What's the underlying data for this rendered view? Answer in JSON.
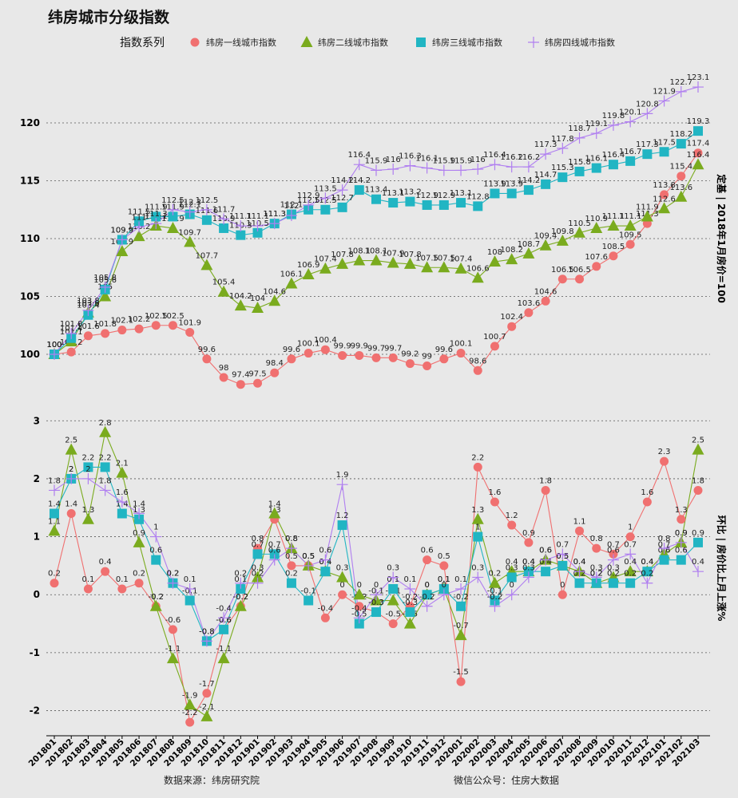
{
  "title": "纬房城市分级指数",
  "legend_title": "指数系列",
  "footer": {
    "source": "数据来源：纬房研究院",
    "wechat": "微信公众号：住房大数据"
  },
  "chart_data": [
    {
      "type": "line",
      "ylabel": "定基 | 2018年1月房价=100",
      "ylim": [
        96,
        124
      ],
      "yticks": [
        100,
        105,
        110,
        115,
        120
      ],
      "grid": "horizontal dotted",
      "legend_position": "top",
      "x": [
        "201801",
        "201802",
        "201803",
        "201804",
        "201805",
        "201806",
        "201807",
        "201808",
        "201809",
        "201810",
        "201811",
        "201812",
        "201901",
        "201902",
        "201903",
        "201904",
        "201905",
        "201906",
        "201907",
        "201908",
        "201909",
        "201910",
        "201911",
        "201912",
        "202001",
        "202002",
        "202003",
        "202004",
        "202005",
        "202006",
        "202007",
        "202008",
        "202009",
        "202010",
        "202011",
        "202012",
        "202101",
        "202102",
        "202103"
      ],
      "series": [
        {
          "name": "纬房一线城市指数",
          "color": "#f07070",
          "marker": "circle",
          "values": [
            100,
            100.2,
            101.6,
            101.8,
            102.1,
            102.2,
            102.5,
            102.5,
            101.9,
            99.6,
            98,
            97.4,
            97.5,
            98.4,
            99.6,
            100.1,
            100.4,
            99.9,
            99.9,
            99.7,
            99.7,
            99.2,
            99,
            99.6,
            100.1,
            98.6,
            100.7,
            102.4,
            103.6,
            104.6,
            106.5,
            106.5,
            107.6,
            108.5,
            109.5,
            111.3,
            113.8,
            115.4,
            117.4
          ]
        },
        {
          "name": "纬房二线城市指数",
          "color": "#7aab1e",
          "marker": "triangle",
          "values": [
            100,
            101.1,
            103.6,
            105,
            108.9,
            110.2,
            111.1,
            110.9,
            109.7,
            107.7,
            105.4,
            104.2,
            104,
            104.6,
            106.1,
            106.9,
            107.4,
            107.8,
            108.1,
            108.1,
            107.9,
            107.8,
            107.5,
            107.5,
            107.4,
            106.6,
            108,
            108.2,
            108.7,
            109.4,
            109.8,
            110.5,
            110.9,
            111.1,
            111.1,
            111.9,
            112.6,
            113.6,
            116.4
          ]
        },
        {
          "name": "纬房三线城市指数",
          "color": "#21b5c3",
          "marker": "square",
          "values": [
            100,
            101.4,
            103.4,
            105.6,
            109.9,
            111.5,
            111.9,
            111.9,
            112.1,
            111.6,
            110.9,
            110.3,
            110.5,
            111.3,
            112.1,
            112.5,
            112.5,
            112.7,
            114.2,
            113.4,
            113.1,
            113.2,
            112.9,
            112.9,
            113.1,
            112.8,
            113.9,
            113.9,
            114.2,
            114.7,
            115.3,
            115.8,
            116.1,
            116.4,
            116.7,
            117.3,
            117.5,
            118.2,
            119.3
          ]
        },
        {
          "name": "纬房四线城市指数",
          "color": "#b07ff0",
          "marker": "plus",
          "values": [
            100,
            101.8,
            103.8,
            105.8,
            109.9,
            111,
            111.3,
            112.5,
            112.3,
            112.5,
            111.7,
            111.1,
            111.1,
            111.3,
            112,
            112.9,
            113.5,
            114.2,
            116.4,
            115.9,
            116,
            116.3,
            116.1,
            115.9,
            115.9,
            116,
            116.4,
            116.2,
            116.2,
            117.3,
            117.8,
            118.7,
            119.1,
            119.8,
            120.1,
            120.8,
            121.9,
            122.7,
            123.1
          ]
        }
      ]
    },
    {
      "type": "line",
      "ylabel": "环比 | 房价比上月上涨%",
      "ylim": [
        -2.35,
        3.1
      ],
      "yticks": [
        -2,
        -1,
        0,
        1,
        2,
        3
      ],
      "grid": "horizontal dotted",
      "x": [
        "201801",
        "201802",
        "201803",
        "201804",
        "201805",
        "201806",
        "201807",
        "201808",
        "201809",
        "201810",
        "201811",
        "201812",
        "201901",
        "201902",
        "201903",
        "201904",
        "201905",
        "201906",
        "201907",
        "201908",
        "201909",
        "201910",
        "201911",
        "201912",
        "202001",
        "202002",
        "202003",
        "202004",
        "202005",
        "202006",
        "202007",
        "202008",
        "202009",
        "202010",
        "202011",
        "202012",
        "202101",
        "202102",
        "202103"
      ],
      "series": [
        {
          "name": "纬房一线城市指数",
          "color": "#f07070",
          "marker": "circle",
          "values": [
            0.2,
            1.4,
            0.1,
            0.4,
            0.1,
            0.2,
            -0.2,
            -0.6,
            -2.2,
            -1.7,
            -0.6,
            -0.2,
            0.8,
            1.3,
            0.5,
            0.5,
            -0.4,
            0,
            -0.2,
            -0.3,
            -0.5,
            -0.2,
            0.6,
            0.5,
            -1.5,
            2.2,
            1.6,
            1.2,
            0.9,
            1.8,
            0,
            1.1,
            0.8,
            0.7,
            1,
            1.6,
            2.3,
            1.3,
            1.8
          ]
        },
        {
          "name": "纬房二线城市指数",
          "color": "#7aab1e",
          "marker": "triangle",
          "values": [
            1.1,
            2.5,
            1.3,
            2.8,
            2.1,
            0.9,
            -0.2,
            -1.1,
            -1.9,
            -2.1,
            -1.1,
            -0.2,
            0.3,
            1.4,
            0.8,
            0.5,
            0.4,
            0.3,
            0,
            -0.1,
            -0.1,
            -0.5,
            0,
            0.1,
            -0.7,
            1.3,
            0.2,
            0.4,
            0.4,
            0.6,
            0.5,
            0.4,
            0.2,
            0.3,
            0.4,
            0.4,
            0.7,
            0.9,
            2.5
          ]
        },
        {
          "name": "纬房三线城市指数",
          "color": "#21b5c3",
          "marker": "square",
          "values": [
            1.4,
            2,
            2.2,
            2.2,
            1.4,
            1.3,
            0.6,
            0.2,
            -0.1,
            -0.8,
            -0.6,
            0.1,
            0.7,
            0.7,
            0.2,
            -0.1,
            0.4,
            1.2,
            -0.5,
            -0.3,
            0.1,
            -0.3,
            0,
            0.1,
            -0.2,
            1,
            -0.1,
            0.3,
            0.4,
            0.4,
            0.5,
            0.2,
            0.2,
            0.2,
            0.2,
            0.4,
            0.6,
            0.6,
            0.9
          ]
        },
        {
          "name": "纬房四线城市指数",
          "color": "#b07ff0",
          "marker": "plus",
          "values": [
            1.8,
            2,
            2,
            1.8,
            1.6,
            1.4,
            1,
            0.2,
            0.1,
            -0.8,
            -0.4,
            0.2,
            0.2,
            0.6,
            0.8,
            0.5,
            0.6,
            1.9,
            -0.4,
            0,
            0.3,
            0.1,
            -0.2,
            0,
            0.1,
            0.3,
            -0.2,
            0,
            0.3,
            0.6,
            0.7,
            0.4,
            0.3,
            0.6,
            0.7,
            0.2,
            0.8,
            0.9,
            0.4
          ]
        }
      ]
    }
  ]
}
